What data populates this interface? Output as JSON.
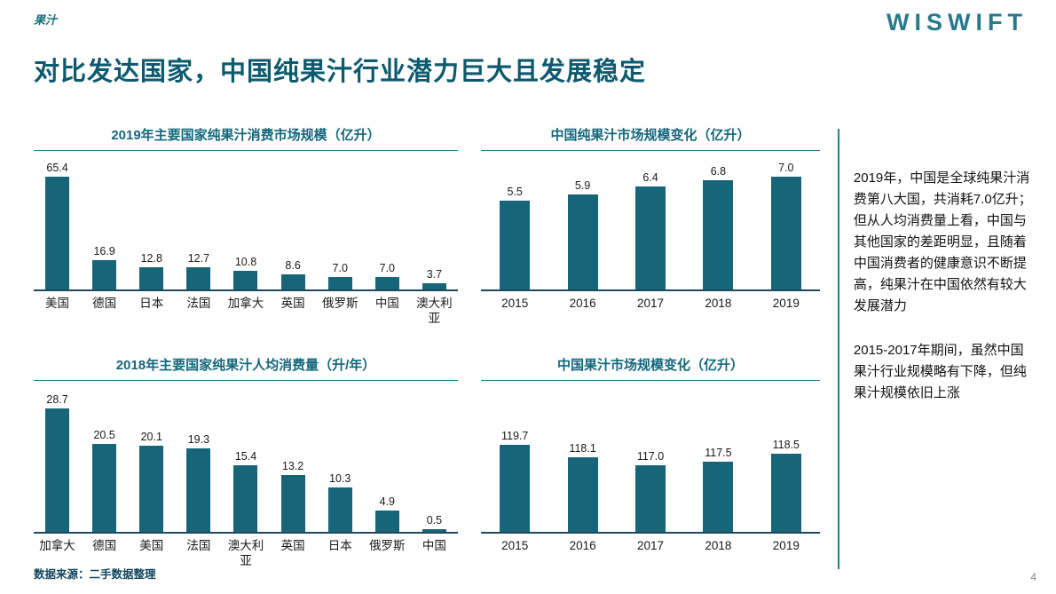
{
  "header": {
    "tag": "果汁",
    "title": "对比发达国家，中国纯果汁行业潜力巨大且发展稳定",
    "logo": "WISWIFT"
  },
  "chart_data": [
    {
      "type": "bar",
      "title": "2019年主要国家纯果汁消费市场规模（亿升）",
      "categories": [
        "美国",
        "德国",
        "日本",
        "法国",
        "加拿大",
        "英国",
        "俄罗斯",
        "中国",
        "澳大利亚"
      ],
      "values": [
        65.4,
        16.9,
        12.8,
        12.7,
        10.8,
        8.6,
        7.0,
        7.0,
        3.7
      ],
      "ylim": [
        0,
        70
      ],
      "grid": false,
      "legend": "none"
    },
    {
      "type": "bar",
      "title": "中国纯果汁市场规模变化（亿升）",
      "categories": [
        "2015",
        "2016",
        "2017",
        "2018",
        "2019"
      ],
      "values": [
        5.5,
        5.9,
        6.4,
        6.8,
        7.0
      ],
      "ylim": [
        0,
        7.5
      ],
      "grid": false,
      "legend": "none"
    },
    {
      "type": "bar",
      "title": "2018年主要国家纯果汁人均消费量（升/年）",
      "categories": [
        "加拿大",
        "德国",
        "美国",
        "法国",
        "澳大利亚",
        "英国",
        "日本",
        "俄罗斯",
        "中国"
      ],
      "values": [
        28.7,
        20.5,
        20.1,
        19.3,
        15.4,
        13.2,
        10.3,
        4.9,
        0.5
      ],
      "ylim": [
        0,
        31
      ],
      "grid": false,
      "legend": "none"
    },
    {
      "type": "bar",
      "title": "中国果汁市场规模变化（亿升）",
      "categories": [
        "2015",
        "2016",
        "2017",
        "2018",
        "2019"
      ],
      "values": [
        119.7,
        118.1,
        117.0,
        117.5,
        118.5
      ],
      "ylim": [
        108,
        126
      ],
      "grid": false,
      "legend": "none"
    }
  ],
  "commentary": {
    "para1": "2019年，中国是全球纯果汁消费第八大国，共消耗7.0亿升；但从人均消费量上看，中国与其他国家的差距明显，且随着中国消费者的健康意识不断提高，纯果汁在中国依然有较大发展潜力",
    "para2": "2015-2017年期间，虽然中国果汁行业规模略有下降，但纯果汁规模依旧上涨"
  },
  "footer": {
    "source": "数据来源：二手数据整理",
    "page": "4"
  },
  "colors": {
    "bar": "#176579",
    "accent": "#2a7d91",
    "title": "#0d5a6e"
  }
}
